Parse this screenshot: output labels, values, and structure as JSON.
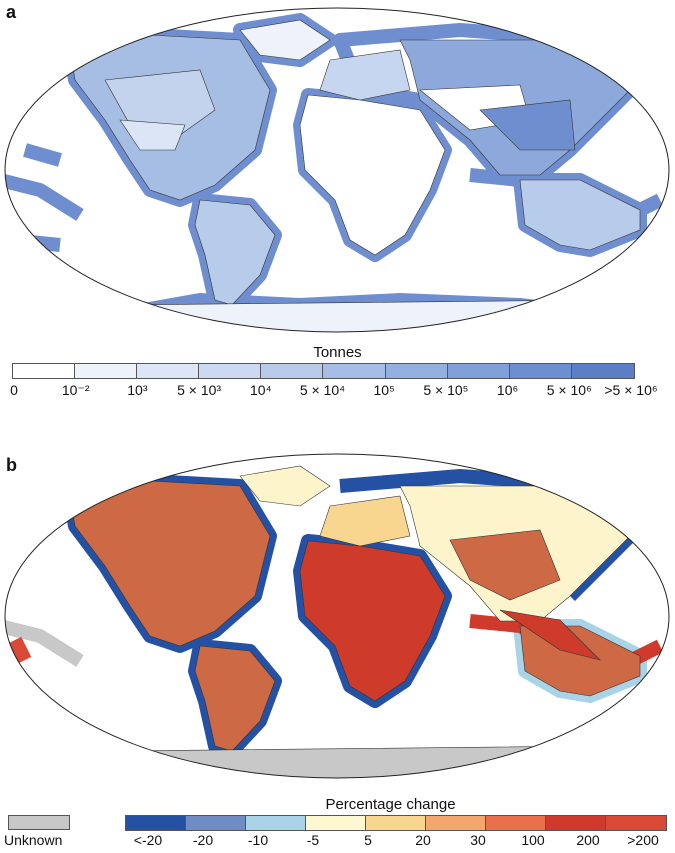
{
  "panels": [
    {
      "letter": "a",
      "legend_title": "Tonnes",
      "legend_ticks": [
        "0",
        "10⁻²",
        "10³",
        "5 × 10³",
        "10⁴",
        "5 × 10⁴",
        "10⁵",
        "5 × 10⁵",
        "10⁶",
        "5 × 10⁶",
        ">5 × 10⁶"
      ],
      "legend_colors": [
        "#ffffff",
        "#eef3fb",
        "#dce6f6",
        "#cbd9f1",
        "#b8cbeb",
        "#a6bee6",
        "#94b0e0",
        "#819fd8",
        "#6d8fd0",
        "#5a7fc7"
      ],
      "colors": {
        "land": "#ffffff",
        "low": "#dfe8f6",
        "mid": "#a6bde4",
        "high": "#7393d0",
        "eez": "#6f8ecf",
        "border": "#333333"
      }
    },
    {
      "letter": "b",
      "legend_title": "Percentage change",
      "legend_ticks": [
        "<-20",
        "-20",
        "-10",
        "-5",
        "5",
        "20",
        "30",
        "100",
        "200",
        ">200"
      ],
      "legend_colors": [
        "#2451a4",
        "#6f8cc4",
        "#a9d3e6",
        "#fdf7d2",
        "#f8d690",
        "#f4a76c",
        "#e8704a",
        "#cf3a2c",
        "#d84a35"
      ],
      "unknown_label": "Unknown",
      "colors": {
        "ocean": "#ffffff",
        "decline": "#2451a4",
        "stable": "#fdf4cc",
        "rise": "#cd6a45",
        "strong_rise": "#cf3b2b",
        "unknown": "#c8c8c8"
      }
    }
  ]
}
